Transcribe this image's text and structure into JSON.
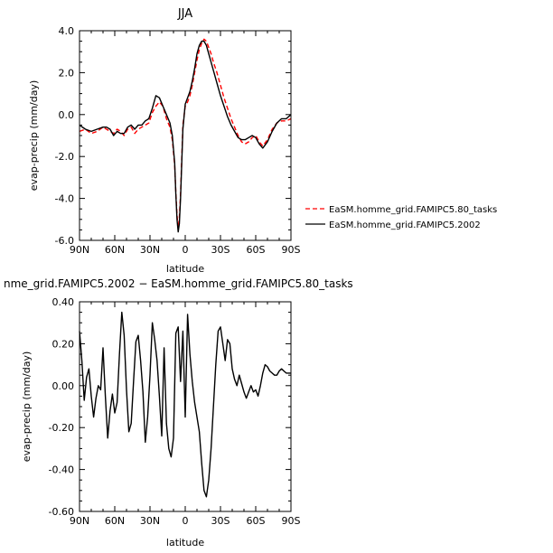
{
  "chart_data": [
    {
      "type": "line",
      "title": "JJA",
      "xlabel": "latitude",
      "ylabel": "evap-precip (mm/day)",
      "xlim": [
        90,
        -90
      ],
      "ylim": [
        -6.0,
        4.0
      ],
      "x_ticks": [
        {
          "value": 90,
          "label": "90N"
        },
        {
          "value": 60,
          "label": "60N"
        },
        {
          "value": 30,
          "label": "30N"
        },
        {
          "value": 0,
          "label": "0"
        },
        {
          "value": -30,
          "label": "30S"
        },
        {
          "value": -60,
          "label": "60S"
        },
        {
          "value": -90,
          "label": "90S"
        }
      ],
      "y_ticks": [
        {
          "value": 4.0,
          "label": "4.0"
        },
        {
          "value": 2.0,
          "label": "2.0"
        },
        {
          "value": 0.0,
          "label": "0.0"
        },
        {
          "value": -2.0,
          "label": "-2.0"
        },
        {
          "value": -4.0,
          "label": "-4.0"
        },
        {
          "value": -6.0,
          "label": "-6.0"
        }
      ],
      "legend_position": "right",
      "series": [
        {
          "name": "EaSM.homme_grid.FAMIPC5.80_tasks",
          "color": "#ff0000",
          "dash": "dashed",
          "x": [
            90,
            85,
            80,
            75,
            70,
            67,
            64,
            61,
            58,
            55,
            52,
            49,
            46,
            43,
            40,
            37,
            34,
            31,
            28,
            25,
            22,
            19,
            16,
            13,
            11,
            9,
            8,
            7,
            6,
            5,
            4,
            2,
            0,
            -2,
            -4,
            -6,
            -8,
            -10,
            -12,
            -14,
            -16,
            -18,
            -20,
            -22,
            -24,
            -27,
            -30,
            -33,
            -36,
            -39,
            -42,
            -45,
            -48,
            -51,
            -54,
            -57,
            -60,
            -63,
            -66,
            -70,
            -74,
            -78,
            -82,
            -86,
            -90
          ],
          "y": [
            -0.8,
            -0.7,
            -0.9,
            -0.8,
            -0.6,
            -0.7,
            -0.8,
            -0.9,
            -0.7,
            -0.8,
            -1.0,
            -0.7,
            -0.6,
            -0.9,
            -0.7,
            -0.6,
            -0.5,
            -0.4,
            0.1,
            0.4,
            0.6,
            0.4,
            -0.2,
            -0.6,
            -1.2,
            -2.4,
            -3.7,
            -4.8,
            -5.4,
            -4.9,
            -3.8,
            -0.5,
            0.4,
            0.6,
            0.9,
            1.4,
            2.0,
            2.6,
            3.1,
            3.4,
            3.6,
            3.5,
            3.2,
            2.9,
            2.5,
            2.0,
            1.4,
            0.8,
            0.3,
            -0.2,
            -0.6,
            -1.0,
            -1.3,
            -1.4,
            -1.3,
            -1.1,
            -1.0,
            -1.3,
            -1.5,
            -1.2,
            -0.7,
            -0.4,
            -0.3,
            -0.3,
            -0.2
          ]
        },
        {
          "name": "EaSM.homme_grid.FAMIPC5.2002",
          "color": "#000000",
          "dash": "solid",
          "x": [
            90,
            85,
            80,
            75,
            70,
            67,
            64,
            61,
            58,
            55,
            52,
            49,
            46,
            43,
            40,
            37,
            34,
            31,
            28,
            25,
            22,
            19,
            16,
            13,
            11,
            9,
            8,
            7,
            6,
            5,
            4,
            2,
            0,
            -2,
            -4,
            -6,
            -8,
            -10,
            -12,
            -14,
            -16,
            -18,
            -20,
            -22,
            -24,
            -27,
            -30,
            -33,
            -36,
            -39,
            -42,
            -45,
            -48,
            -51,
            -54,
            -57,
            -60,
            -63,
            -66,
            -70,
            -74,
            -78,
            -82,
            -86,
            -90
          ],
          "y": [
            -0.5,
            -0.7,
            -0.8,
            -0.7,
            -0.6,
            -0.6,
            -0.7,
            -1.0,
            -0.8,
            -0.9,
            -0.9,
            -0.6,
            -0.5,
            -0.7,
            -0.5,
            -0.5,
            -0.3,
            -0.2,
            0.3,
            0.9,
            0.8,
            0.4,
            0.0,
            -0.4,
            -1.0,
            -2.3,
            -3.8,
            -5.0,
            -5.6,
            -5.2,
            -4.0,
            -0.7,
            0.5,
            0.8,
            1.1,
            1.6,
            2.2,
            2.9,
            3.3,
            3.5,
            3.5,
            3.3,
            2.9,
            2.5,
            2.1,
            1.5,
            0.9,
            0.4,
            -0.1,
            -0.5,
            -0.8,
            -1.1,
            -1.2,
            -1.2,
            -1.1,
            -1.0,
            -1.1,
            -1.4,
            -1.6,
            -1.3,
            -0.8,
            -0.4,
            -0.2,
            -0.2,
            0.0
          ]
        }
      ]
    },
    {
      "type": "line",
      "title": "nme_grid.FAMIPC5.2002 − EaSM.homme_grid.FAMIPC5.80_tasks",
      "xlabel": "latitude",
      "ylabel": "evap-precip (mm/day)",
      "xlim": [
        90,
        -90
      ],
      "ylim": [
        -0.6,
        0.4
      ],
      "x_ticks": [
        {
          "value": 90,
          "label": "90N"
        },
        {
          "value": 60,
          "label": "60N"
        },
        {
          "value": 30,
          "label": "30N"
        },
        {
          "value": 0,
          "label": "0"
        },
        {
          "value": -30,
          "label": "30S"
        },
        {
          "value": -60,
          "label": "60S"
        },
        {
          "value": -90,
          "label": "90S"
        }
      ],
      "y_ticks": [
        {
          "value": 0.4,
          "label": "0.40"
        },
        {
          "value": 0.2,
          "label": "0.20"
        },
        {
          "value": 0.0,
          "label": "0.00"
        },
        {
          "value": -0.2,
          "label": "-0.20"
        },
        {
          "value": -0.4,
          "label": "-0.40"
        },
        {
          "value": -0.6,
          "label": "-0.60"
        }
      ],
      "series": [
        {
          "color": "#000000",
          "dash": "solid",
          "x": [
            90,
            88,
            86,
            84,
            82,
            80,
            78,
            76,
            74,
            72,
            70,
            68,
            66,
            64,
            62,
            60,
            58,
            56,
            54,
            52,
            50,
            48,
            46,
            44,
            42,
            40,
            38,
            36,
            34,
            32,
            30,
            28,
            26,
            24,
            22,
            20,
            18,
            16,
            14,
            12,
            10,
            8,
            6,
            4,
            2,
            0,
            -2,
            -4,
            -6,
            -8,
            -10,
            -12,
            -14,
            -16,
            -18,
            -20,
            -22,
            -24,
            -26,
            -28,
            -30,
            -32,
            -34,
            -36,
            -38,
            -40,
            -42,
            -44,
            -46,
            -48,
            -50,
            -52,
            -54,
            -56,
            -58,
            -60,
            -62,
            -64,
            -66,
            -68,
            -70,
            -72,
            -74,
            -76,
            -78,
            -80,
            -82,
            -84,
            -86,
            -88,
            -90
          ],
          "y": [
            0.26,
            0.12,
            -0.07,
            0.04,
            0.08,
            -0.05,
            -0.15,
            -0.06,
            0.0,
            -0.02,
            0.18,
            -0.05,
            -0.25,
            -0.12,
            -0.04,
            -0.13,
            -0.08,
            0.15,
            0.35,
            0.24,
            -0.02,
            -0.22,
            -0.18,
            0.02,
            0.21,
            0.24,
            0.12,
            -0.03,
            -0.27,
            -0.15,
            0.05,
            0.3,
            0.22,
            0.12,
            -0.05,
            -0.24,
            0.18,
            -0.18,
            -0.3,
            -0.34,
            -0.25,
            0.25,
            0.28,
            0.02,
            0.26,
            -0.15,
            0.34,
            0.15,
            0.02,
            -0.08,
            -0.15,
            -0.22,
            -0.37,
            -0.5,
            -0.53,
            -0.45,
            -0.3,
            -0.1,
            0.1,
            0.26,
            0.28,
            0.2,
            0.12,
            0.22,
            0.2,
            0.08,
            0.03,
            0.0,
            0.05,
            0.01,
            -0.03,
            -0.06,
            -0.03,
            0.0,
            -0.03,
            -0.02,
            -0.05,
            0.0,
            0.06,
            0.1,
            0.09,
            0.07,
            0.06,
            0.05,
            0.05,
            0.07,
            0.08,
            0.07,
            0.06,
            0.06,
            0.06
          ]
        }
      ]
    }
  ]
}
